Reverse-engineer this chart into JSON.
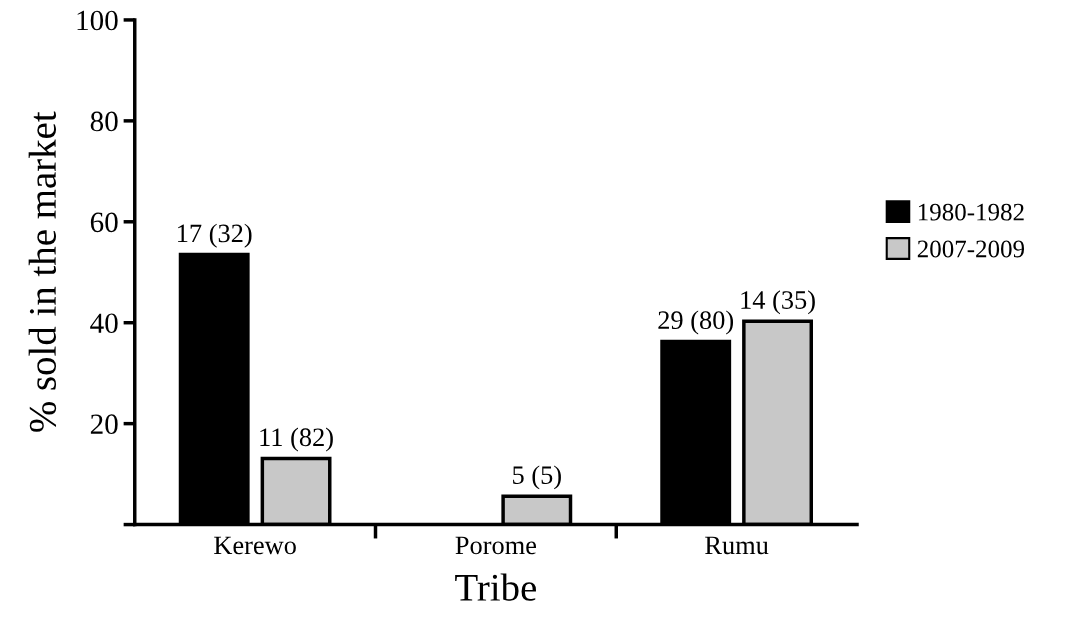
{
  "chart_data": {
    "type": "bar",
    "xlabel": "Tribe",
    "ylabel": "% sold in the market",
    "categories": [
      "Kerewo",
      "Porome",
      "Rumu"
    ],
    "series": [
      {
        "name": "1980-1982",
        "color": "#000000",
        "values": [
          53.5,
          null,
          36.3
        ]
      },
      {
        "name": "2007-2009",
        "color": "#c8c8c8",
        "values": [
          13.1,
          5.6,
          40.3
        ]
      }
    ],
    "annotations": [
      "17 (32)",
      "11 (82)",
      "5 (5)",
      "29 (80)",
      "14 (35)"
    ],
    "ylim": [
      0,
      100
    ],
    "yticks": [
      {
        "value": 0,
        "label": null
      },
      20,
      40,
      60,
      80,
      100
    ],
    "grid": false,
    "legend": "right"
  }
}
